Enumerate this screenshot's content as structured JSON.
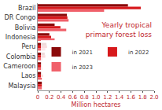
{
  "chart_data": {
    "type": "bar",
    "orientation": "horizontal",
    "title": "Yearly tropical\nprimary forest loss",
    "x_label": "Million hectares",
    "categories": [
      "Brazil",
      "DR Congo",
      "Bolivia",
      "Indonesia",
      "Peru",
      "Colombia",
      "Cameroon",
      "Laos",
      "Malaysia"
    ],
    "series": [
      {
        "name": "in 2021",
        "color": "#8b0a0a",
        "values": [
          1.55,
          0.5,
          0.29,
          0.2,
          0.15,
          0.12,
          0.07,
          0.07,
          0.07
        ]
      },
      {
        "name": "in 2022",
        "color": "#d7191c",
        "values": [
          1.77,
          0.51,
          0.39,
          0.23,
          0.16,
          0.13,
          0.07,
          0.09,
          0.07
        ]
      },
      {
        "name": "in 2023",
        "color": "#f0606a",
        "values": [
          1.14,
          0.53,
          0.49,
          0.29,
          0.13,
          0.08,
          0.08,
          0.07,
          0.07
        ]
      }
    ],
    "xlim": [
      0,
      2
    ],
    "xticks": [
      0,
      0.2,
      0.4,
      0.6,
      0.8,
      {
        "value": 1,
        "label": "1.0"
      },
      1.2,
      1.4,
      1.6,
      1.8,
      {
        "value": 2,
        "label": "2.0"
      }
    ],
    "grid": false,
    "legend": "bottom right"
  }
}
